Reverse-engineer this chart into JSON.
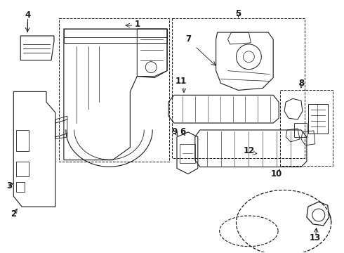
{
  "bg_color": "#ffffff",
  "line_color": "#1a1a1a",
  "lw": 0.9,
  "label_fontsize": 8.5,
  "label_fontweight": "bold",
  "fig_w": 4.9,
  "fig_h": 3.6,
  "dpi": 100
}
